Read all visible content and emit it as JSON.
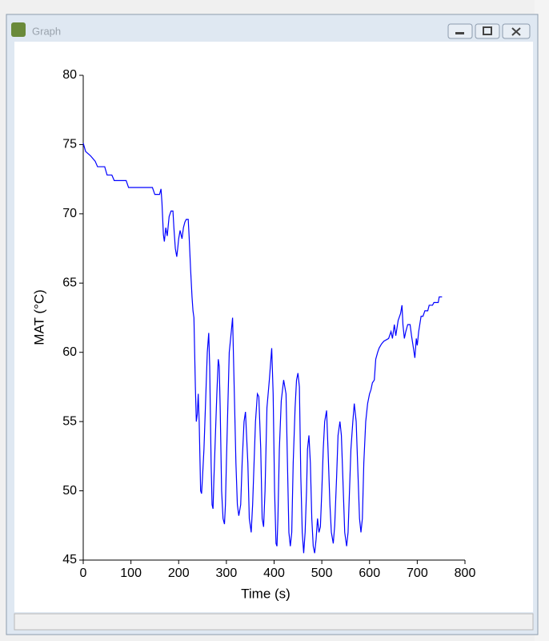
{
  "window": {
    "title": "Graph"
  },
  "chart_data": {
    "type": "line",
    "xlabel": "Time (s)",
    "ylabel": "MAT (°C)",
    "xlim": [
      0,
      800
    ],
    "xticks": [
      0,
      100,
      200,
      300,
      400,
      500,
      600,
      700,
      800
    ],
    "ylim": [
      45,
      80
    ],
    "yticks": [
      45,
      50,
      55,
      60,
      65,
      70,
      75,
      80
    ],
    "grid": false,
    "series": [
      {
        "color": "#0000ff",
        "x": [
          0,
          5,
          15,
          25,
          30,
          45,
          50,
          60,
          65,
          90,
          95,
          145,
          150,
          160,
          163,
          165,
          168,
          170,
          173,
          176,
          180,
          184,
          188,
          190,
          193,
          196,
          198,
          200,
          203,
          207,
          210,
          213,
          216,
          220,
          222,
          225,
          228,
          230,
          232,
          235,
          237,
          239,
          241,
          243,
          246,
          248,
          250,
          253,
          257,
          260,
          263,
          265,
          268,
          270,
          272,
          274,
          277,
          280,
          283,
          285,
          287,
          290,
          293,
          296,
          298,
          300,
          303,
          306,
          310,
          313,
          316,
          320,
          323,
          326,
          330,
          333,
          337,
          340,
          345,
          348,
          352,
          355,
          358,
          361,
          365,
          368,
          372,
          375,
          378,
          381,
          385,
          390,
          395,
          398,
          401,
          404,
          406,
          408,
          411,
          415,
          420,
          425,
          428,
          431,
          434,
          437,
          440,
          444,
          447,
          450,
          453,
          456,
          459,
          462,
          465,
          468,
          470,
          473,
          476,
          479,
          482,
          485,
          488,
          491,
          494,
          497,
          500,
          503,
          506,
          510,
          513,
          517,
          520,
          524,
          527,
          531,
          534,
          538,
          541,
          545,
          548,
          552,
          555,
          558,
          561,
          565,
          568,
          572,
          575,
          579,
          582,
          585,
          588,
          592,
          596,
          600,
          603,
          606,
          610,
          613,
          617,
          620,
          625,
          630,
          640,
          645,
          648,
          652,
          655,
          660,
          665,
          668,
          670,
          673,
          676,
          680,
          685,
          688,
          692,
          695,
          698,
          700,
          703,
          708,
          712,
          716,
          722,
          725,
          732,
          735,
          744,
          746,
          752
        ],
        "values": [
          75.1,
          74.5,
          74.2,
          73.8,
          73.4,
          73.4,
          72.8,
          72.8,
          72.4,
          72.4,
          71.9,
          71.9,
          71.4,
          71.4,
          71.8,
          70.8,
          68.5,
          68,
          69,
          68.4,
          69.8,
          70.2,
          70.2,
          69,
          67.5,
          66.9,
          67.5,
          68.2,
          68.8,
          68.2,
          69,
          69.4,
          69.6,
          69.6,
          68.3,
          66,
          64,
          63,
          62.5,
          57.5,
          55,
          55.5,
          57,
          55,
          50,
          49.8,
          51,
          53,
          57,
          60,
          61.4,
          59,
          52,
          49,
          48.7,
          51,
          54,
          57,
          59.5,
          59,
          56,
          50,
          48,
          47.6,
          49,
          52,
          56,
          60,
          61.4,
          62.5,
          58,
          52,
          49,
          48.2,
          49,
          52,
          55,
          55.7,
          52,
          48,
          47,
          49,
          52,
          55,
          57,
          56.8,
          53,
          48,
          47.4,
          50,
          56,
          58,
          60.3,
          57,
          50,
          46.2,
          46,
          48,
          53,
          56.5,
          58,
          57,
          52,
          47,
          46,
          47,
          52,
          56,
          58,
          58.5,
          57.5,
          51,
          47,
          45.5,
          47,
          50,
          53,
          54,
          52,
          48,
          46,
          45.5,
          46.5,
          48,
          47,
          47.4,
          50,
          53,
          55,
          55.8,
          53,
          49,
          47,
          46.2,
          47.5,
          51,
          54,
          55,
          54,
          50,
          47,
          46,
          47,
          50,
          53,
          55,
          56.3,
          55,
          52,
          48,
          47,
          48,
          52,
          55,
          56.3,
          57,
          57.3,
          57.8,
          58,
          59.5,
          60,
          60.3,
          60.6,
          60.8,
          61,
          61.5,
          61,
          62,
          61.2,
          62.3,
          62.8,
          63.4,
          62,
          61,
          61.5,
          62,
          62,
          61.2,
          60.3,
          59.6,
          61,
          60.5,
          61.5,
          62.6,
          62.6,
          63,
          63,
          63.4,
          63.4,
          63.6,
          63.6,
          64,
          64
        ]
      }
    ]
  }
}
